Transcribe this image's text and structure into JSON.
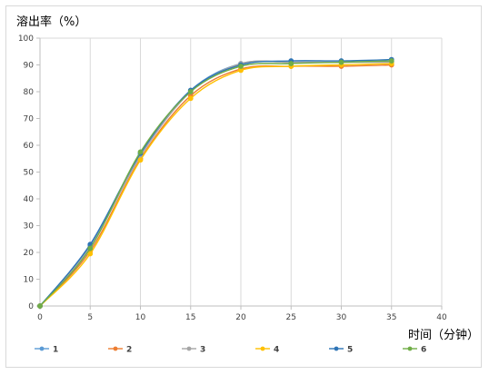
{
  "chart_data": {
    "type": "line",
    "ylabel": "溶出率（%）",
    "xlabel": "时间（分钟）",
    "xlim": [
      0,
      40
    ],
    "ylim": [
      0,
      100
    ],
    "x_ticks": [
      "0",
      "5",
      "10",
      "15",
      "20",
      "25",
      "30",
      "35",
      "40"
    ],
    "y_ticks": [
      "0",
      "10",
      "20",
      "30",
      "40",
      "50",
      "60",
      "70",
      "80",
      "90",
      "100"
    ],
    "grid": "vertical",
    "legend_position": "bottom",
    "x": [
      0,
      5,
      10,
      15,
      20,
      25,
      30,
      35
    ],
    "series": [
      {
        "name": "1",
        "color": "#5b9bd5",
        "values": [
          0,
          22.5,
          56.5,
          80.5,
          90.5,
          91.0,
          91.0,
          91.5
        ]
      },
      {
        "name": "2",
        "color": "#ed7d31",
        "values": [
          0,
          20.5,
          55.0,
          78.5,
          88.5,
          89.5,
          89.5,
          90.0
        ]
      },
      {
        "name": "3",
        "color": "#a5a5a5",
        "values": [
          0,
          22.0,
          56.0,
          80.0,
          90.5,
          91.0,
          91.0,
          91.0
        ]
      },
      {
        "name": "4",
        "color": "#ffc000",
        "values": [
          0,
          19.5,
          54.5,
          77.5,
          88.0,
          89.5,
          90.0,
          90.5
        ]
      },
      {
        "name": "5",
        "color": "#2e75b6",
        "values": [
          0,
          23.0,
          57.0,
          80.5,
          90.0,
          91.5,
          91.5,
          92.0
        ]
      },
      {
        "name": "6",
        "color": "#70ad47",
        "values": [
          0,
          21.5,
          57.5,
          80.0,
          89.5,
          90.5,
          91.0,
          91.5
        ]
      }
    ]
  }
}
